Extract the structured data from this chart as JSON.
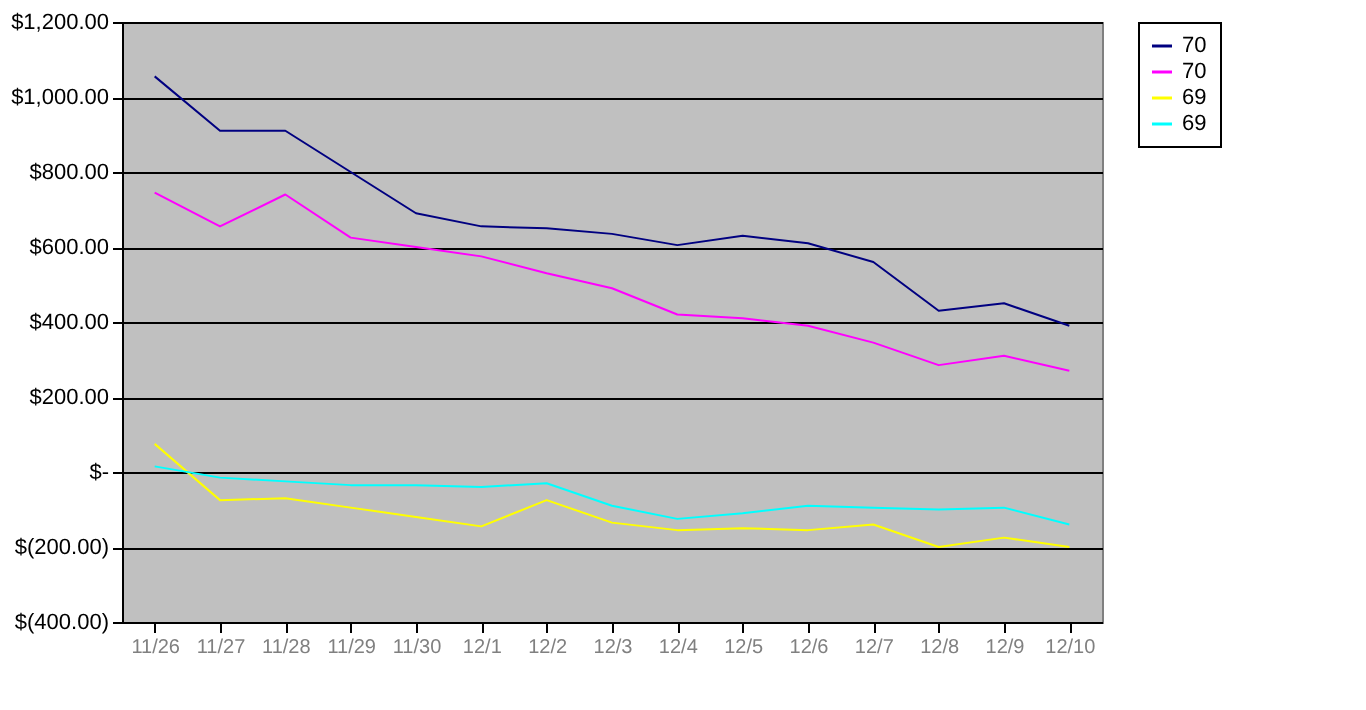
{
  "chart_data": {
    "type": "line",
    "categories": [
      "11/26",
      "11/27",
      "11/28",
      "11/29",
      "11/30",
      "12/1",
      "12/2",
      "12/3",
      "12/4",
      "12/5",
      "12/6",
      "12/7",
      "12/8",
      "12/9",
      "12/10"
    ],
    "series": [
      {
        "name": "70",
        "color": "#000080",
        "values": [
          1055,
          910,
          910,
          800,
          690,
          655,
          650,
          635,
          605,
          630,
          610,
          560,
          430,
          450,
          390
        ]
      },
      {
        "name": "70",
        "color": "#ff00ff",
        "values": [
          745,
          655,
          740,
          625,
          600,
          575,
          530,
          490,
          420,
          410,
          390,
          345,
          285,
          310,
          270
        ]
      },
      {
        "name": "69",
        "color": "#ffff00",
        "values": [
          75,
          -75,
          -70,
          -95,
          -120,
          -145,
          -75,
          -135,
          -155,
          -150,
          -155,
          -140,
          -200,
          -175,
          -200
        ]
      },
      {
        "name": "69",
        "color": "#00ffff",
        "values": [
          15,
          -15,
          -25,
          -35,
          -35,
          -40,
          -30,
          -90,
          -125,
          -110,
          -90,
          -95,
          -100,
          -95,
          -140
        ]
      }
    ],
    "ylim": [
      -400,
      1200
    ],
    "yticks": [
      {
        "value": -400,
        "label": "$(400.00)"
      },
      {
        "value": -200,
        "label": "$(200.00)"
      },
      {
        "value": 0,
        "label": "$-"
      },
      {
        "value": 200,
        "label": "$200.00"
      },
      {
        "value": 400,
        "label": "$400.00"
      },
      {
        "value": 600,
        "label": "$600.00"
      },
      {
        "value": 800,
        "label": "$800.00"
      },
      {
        "value": 1000,
        "label": "$1,000.00"
      },
      {
        "value": 1200,
        "label": "$1,200.00"
      }
    ],
    "grid": "y",
    "legend": "right",
    "marker": "none",
    "line_style": "solid"
  }
}
